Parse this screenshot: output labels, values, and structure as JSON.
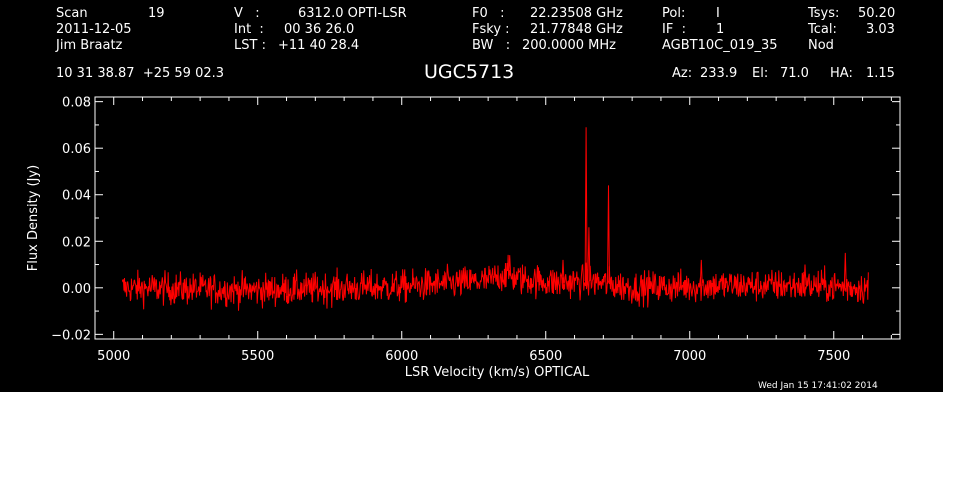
{
  "header": {
    "scan_label": "Scan",
    "scan_value": "19",
    "date": "2011-12-05",
    "observer": "Jim Braatz",
    "v_label": "V   :",
    "v_value": "6312.0 OPTI-LSR",
    "int_label": "Int  :",
    "int_value": "00 36 26.0",
    "lst_label": "LST :",
    "lst_value": "+11 40 28.4",
    "f0_label": "F0   :",
    "f0_value": "22.23508 GHz",
    "fsky_label": "Fsky :",
    "fsky_value": "21.77848 GHz",
    "bw_label": "BW   :",
    "bw_value": "200.0000 MHz",
    "pol_label": "Pol:",
    "pol_value": "I",
    "if_label": "IF  :",
    "if_value": "1",
    "project": "AGBT10C_019_35",
    "tsys_label": "Tsys:",
    "tsys_value": "50.20",
    "tcal_label": "Tcal:",
    "tcal_value": "3.03",
    "proc": "Nod",
    "coords": "10 31 38.87  +25 59 02.3",
    "az_label": "Az:",
    "az_value": "233.9",
    "el_label": "El:",
    "el_value": "71.0",
    "ha_label": "HA:",
    "ha_value": "1.15"
  },
  "source": "UGC5713",
  "timestamp": "Wed Jan 15 17:41:02 2014",
  "colors": {
    "background": "#000000",
    "foreground": "#ffffff",
    "series": "#ff0000"
  },
  "chart_data": {
    "type": "line",
    "title": "UGC5713",
    "xlabel": "LSR Velocity (km/s) OPTICAL",
    "ylabel": "Flux Density (Jy)",
    "xlim": [
      4935,
      7730
    ],
    "ylim": [
      -0.022,
      0.082
    ],
    "xticks": [
      5000,
      5500,
      6000,
      6500,
      7000,
      7500
    ],
    "xtick_labels": [
      "5000",
      "5500",
      "6000",
      "6500",
      "7000",
      "7500"
    ],
    "yticks": [
      -0.02,
      0.0,
      0.02,
      0.04,
      0.06,
      0.08
    ],
    "ytick_labels": [
      "−0.02",
      "0.00",
      "0.02",
      "0.04",
      "0.06",
      "0.08"
    ],
    "grid": false,
    "series": [
      {
        "x_range": [
          5030,
          7620
        ],
        "noise_rms": 0.0035,
        "baseline": [
          {
            "x": 5030,
            "y": 0.0
          },
          {
            "x": 5500,
            "y": -0.001
          },
          {
            "x": 6000,
            "y": 0.0005
          },
          {
            "x": 6300,
            "y": 0.003
          },
          {
            "x": 6360,
            "y": 0.006
          },
          {
            "x": 6400,
            "y": 0.004
          },
          {
            "x": 6550,
            "y": 0.002
          },
          {
            "x": 6650,
            "y": 0.003
          },
          {
            "x": 6800,
            "y": 0.0
          },
          {
            "x": 7100,
            "y": 0.001
          },
          {
            "x": 7400,
            "y": 0.001
          },
          {
            "x": 7620,
            "y": 0.0
          }
        ],
        "peaks": [
          {
            "x": 6640,
            "y": 0.069
          },
          {
            "x": 6650,
            "y": 0.026
          },
          {
            "x": 6718,
            "y": 0.044
          },
          {
            "x": 6375,
            "y": 0.014
          },
          {
            "x": 6560,
            "y": 0.012
          },
          {
            "x": 7040,
            "y": 0.012
          },
          {
            "x": 7400,
            "y": 0.01
          },
          {
            "x": 7540,
            "y": 0.015
          }
        ]
      }
    ]
  }
}
